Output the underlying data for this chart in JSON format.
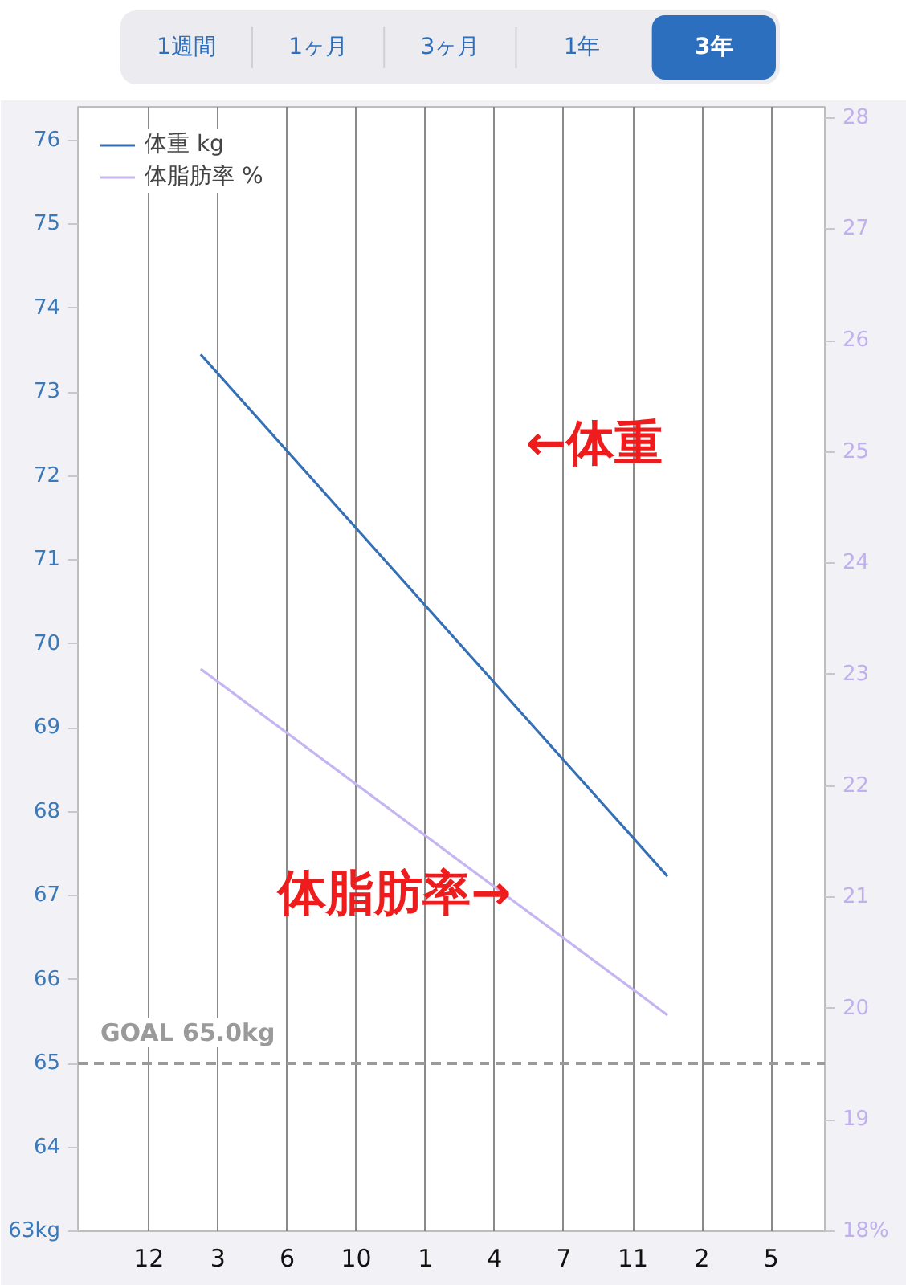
{
  "chart_data": {
    "type": "line",
    "annotations": [
      "1週間",
      "1ヶ月",
      "3ヶ月",
      "1年",
      "3年",
      "←体重",
      "体脂肪率→"
    ],
    "categories": [
      null,
      null,
      null,
      null,
      "12",
      null,
      null,
      null,
      "3",
      null,
      null,
      null,
      "6",
      null,
      null,
      null,
      "10",
      null,
      null,
      null,
      "1",
      null,
      null,
      null,
      "4",
      null,
      null,
      null,
      "7",
      null,
      null,
      null,
      "11",
      null,
      null,
      null,
      "2",
      null,
      null,
      null,
      "5",
      null,
      null,
      null
    ],
    "ylim": [
      63,
      76.4
    ],
    "yticks": [
      {
        "value": 63,
        "label": "63kg"
      },
      64,
      65,
      66,
      67,
      68,
      69,
      70,
      71,
      72,
      73,
      74,
      75,
      76
    ],
    "y2lim": [
      18,
      28.1
    ],
    "y2ticks": [
      {
        "value": 18,
        "label": "18%"
      },
      19,
      20,
      21,
      22,
      23,
      24,
      25,
      26,
      27,
      28
    ],
    "series": [
      {
        "name": "体重 kg",
        "color": "#3670b4",
        "values": [
          null,
          null,
          null,
          null,
          null,
          null,
          null,
          73.45,
          null,
          null,
          null,
          null,
          null,
          null,
          null,
          null,
          null,
          null,
          null,
          null,
          null,
          null,
          null,
          null,
          null,
          null,
          null,
          null,
          null,
          null,
          null,
          null,
          null,
          null,
          67.23,
          null,
          null,
          null,
          null,
          null,
          null,
          null,
          null,
          null
        ]
      },
      {
        "name": "体脂肪率 %",
        "color": "#c5b5f0",
        "values": [
          null,
          null,
          null,
          null,
          null,
          null,
          null,
          23.05,
          null,
          null,
          null,
          null,
          null,
          null,
          null,
          null,
          null,
          null,
          null,
          null,
          null,
          null,
          null,
          null,
          null,
          null,
          null,
          null,
          null,
          null,
          null,
          null,
          null,
          null,
          19.94,
          null,
          null,
          null,
          null,
          null,
          null,
          null,
          null,
          null
        ],
        "axis": "y2"
      }
    ],
    "ref_lines": [
      {
        "axis": "y",
        "value": 65,
        "label": "GOAL 65.0kg",
        "color": "#9a9a9a",
        "line_style": "dashed"
      }
    ],
    "grid": "x",
    "legend": "top left"
  }
}
